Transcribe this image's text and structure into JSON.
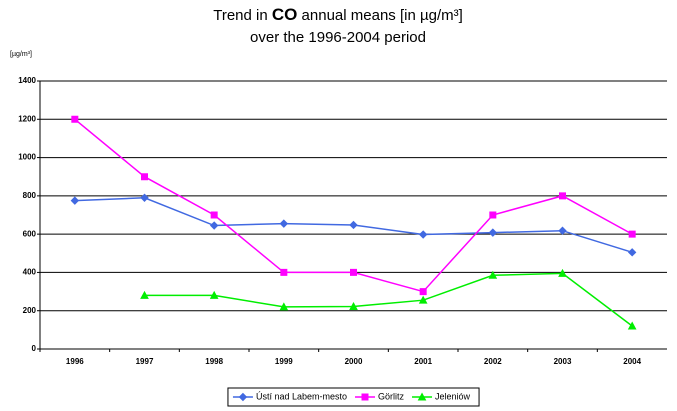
{
  "chart_data": {
    "type": "line",
    "title": [
      "Trend in",
      "CO",
      "annual means [in µg/m³]"
    ],
    "subtitle": "over the 1996-2004 period",
    "y_label": "[µg/m³]",
    "categories": [
      "1996",
      "1997",
      "1998",
      "1999",
      "2000",
      "2001",
      "2002",
      "2003",
      "2004"
    ],
    "series": [
      {
        "name": "Ústí nad Labem-mesto",
        "color": "#4169e1",
        "marker": "diamond",
        "values": [
          775,
          790,
          645,
          655,
          648,
          598,
          608,
          618,
          505
        ]
      },
      {
        "name": "Görlitz",
        "color": "#ff00ff",
        "marker": "square",
        "values": [
          1200,
          900,
          700,
          400,
          400,
          300,
          700,
          800,
          600
        ]
      },
      {
        "name": "Jeleniów",
        "color": "#00ee00",
        "marker": "triangle",
        "values": [
          null,
          280,
          280,
          220,
          222,
          255,
          385,
          395,
          120
        ]
      }
    ],
    "ylim": [
      0,
      1400
    ],
    "yticks": [
      0,
      200,
      400,
      600,
      800,
      1000,
      1200,
      1400
    ],
    "grid": true,
    "legend": "bottom"
  }
}
